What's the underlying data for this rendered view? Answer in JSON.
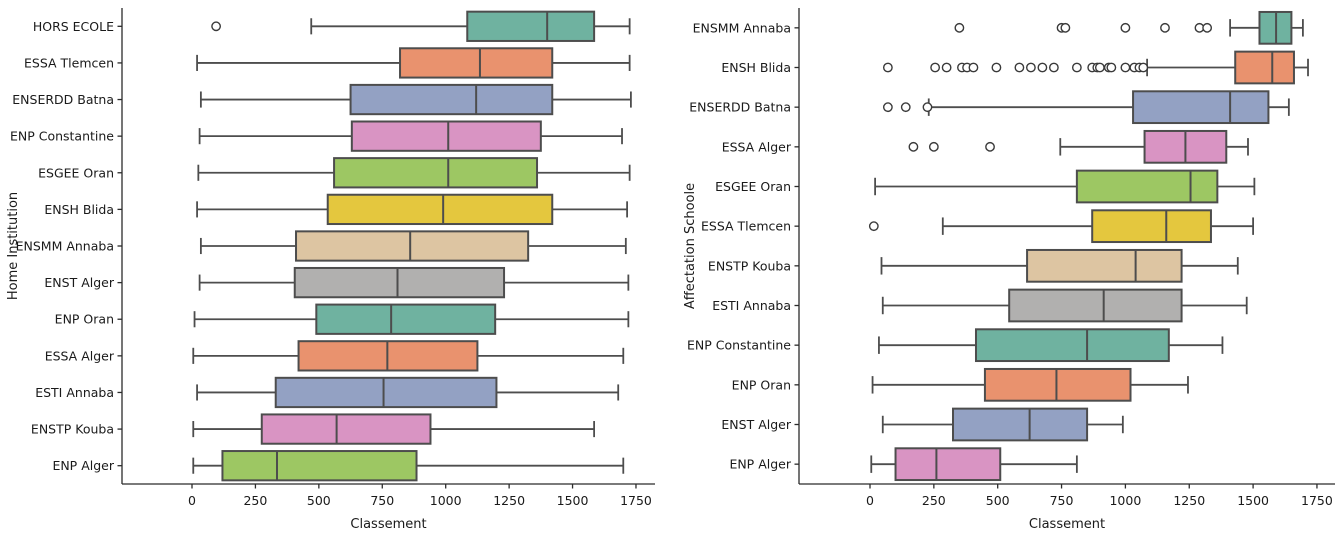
{
  "figure": {
    "background": "#ffffff",
    "palette": {
      "teal": "#6FB2A0",
      "orange": "#E9926E",
      "blue": "#93A1C3",
      "pink": "#D994C3",
      "green": "#9DC763",
      "yellow": "#E4C73E",
      "tan": "#DDC5A2",
      "gray": "#B1B0AF"
    },
    "edge_color": "#4D4D4D",
    "spine_color": "#2B2B2B",
    "text_color": "#1A1A1A"
  },
  "chart_data": [
    {
      "type": "boxplot-horizontal",
      "title": "",
      "xlabel": "Classement",
      "ylabel": "Home Institution",
      "x_ticks": [
        0,
        250,
        500,
        750,
        1000,
        1250,
        1500,
        1750
      ],
      "xlim": [
        -280,
        1820
      ],
      "grid": false,
      "legend": null,
      "rows": [
        {
          "label": "HORS ECOLE",
          "color": "teal",
          "whislo": 470,
          "q1": 1085,
          "med": 1400,
          "q3": 1585,
          "whishi": 1725,
          "outliers": [
            95
          ]
        },
        {
          "label": "ESSA Tlemcen",
          "color": "orange",
          "whislo": 20,
          "q1": 820,
          "med": 1135,
          "q3": 1420,
          "whishi": 1725,
          "outliers": []
        },
        {
          "label": "ENSERDD Batna",
          "color": "blue",
          "whislo": 35,
          "q1": 625,
          "med": 1120,
          "q3": 1420,
          "whishi": 1730,
          "outliers": []
        },
        {
          "label": "ENP Constantine",
          "color": "pink",
          "whislo": 30,
          "q1": 630,
          "med": 1010,
          "q3": 1375,
          "whishi": 1695,
          "outliers": []
        },
        {
          "label": "ESGEE Oran",
          "color": "green",
          "whislo": 25,
          "q1": 560,
          "med": 1010,
          "q3": 1360,
          "whishi": 1725,
          "outliers": []
        },
        {
          "label": "ENSH Blida",
          "color": "yellow",
          "whislo": 20,
          "q1": 535,
          "med": 990,
          "q3": 1420,
          "whishi": 1715,
          "outliers": []
        },
        {
          "label": "ENSMM Annaba",
          "color": "tan",
          "whislo": 35,
          "q1": 410,
          "med": 860,
          "q3": 1325,
          "whishi": 1710,
          "outliers": []
        },
        {
          "label": "ENST Alger",
          "color": "gray",
          "whislo": 30,
          "q1": 405,
          "med": 810,
          "q3": 1230,
          "whishi": 1720,
          "outliers": []
        },
        {
          "label": "ENP Oran",
          "color": "teal",
          "whislo": 10,
          "q1": 490,
          "med": 785,
          "q3": 1195,
          "whishi": 1720,
          "outliers": []
        },
        {
          "label": "ESSA Alger",
          "color": "orange",
          "whislo": 5,
          "q1": 420,
          "med": 770,
          "q3": 1125,
          "whishi": 1700,
          "outliers": []
        },
        {
          "label": "ESTI Annaba",
          "color": "blue",
          "whislo": 20,
          "q1": 330,
          "med": 755,
          "q3": 1200,
          "whishi": 1680,
          "outliers": []
        },
        {
          "label": "ENSTP Kouba",
          "color": "pink",
          "whislo": 5,
          "q1": 275,
          "med": 570,
          "q3": 940,
          "whishi": 1585,
          "outliers": []
        },
        {
          "label": "ENP Alger",
          "color": "green",
          "whislo": 5,
          "q1": 120,
          "med": 335,
          "q3": 885,
          "whishi": 1700,
          "outliers": []
        }
      ]
    },
    {
      "type": "boxplot-horizontal",
      "title": "",
      "xlabel": "Classement",
      "ylabel": "Affectation Schoole",
      "x_ticks": [
        0,
        250,
        500,
        750,
        1000,
        1250,
        1500,
        1750
      ],
      "xlim": [
        -280,
        1820
      ],
      "grid": false,
      "legend": null,
      "rows": [
        {
          "label": "ENSMM Annaba",
          "color": "teal",
          "whislo": 1410,
          "q1": 1525,
          "med": 1590,
          "q3": 1650,
          "whishi": 1695,
          "outliers": [
            350,
            750,
            765,
            1000,
            1155,
            1290,
            1320
          ]
        },
        {
          "label": "ENSH Blida",
          "color": "orange",
          "whislo": 1085,
          "q1": 1430,
          "med": 1575,
          "q3": 1660,
          "whishi": 1715,
          "outliers": [
            70,
            255,
            300,
            360,
            380,
            405,
            495,
            585,
            630,
            675,
            720,
            810,
            870,
            890,
            900,
            935,
            945,
            1000,
            1035,
            1055,
            1070
          ]
        },
        {
          "label": "ENSERDD Batna",
          "color": "blue",
          "whislo": 230,
          "q1": 1030,
          "med": 1410,
          "q3": 1560,
          "whishi": 1640,
          "outliers": [
            70,
            140,
            225
          ]
        },
        {
          "label": "ESSA Alger",
          "color": "pink",
          "whislo": 745,
          "q1": 1075,
          "med": 1235,
          "q3": 1395,
          "whishi": 1480,
          "outliers": [
            170,
            250,
            470
          ]
        },
        {
          "label": "ESGEE Oran",
          "color": "green",
          "whislo": 20,
          "q1": 810,
          "med": 1255,
          "q3": 1360,
          "whishi": 1505,
          "outliers": []
        },
        {
          "label": "ESSA Tlemcen",
          "color": "yellow",
          "whislo": 285,
          "q1": 870,
          "med": 1160,
          "q3": 1335,
          "whishi": 1500,
          "outliers": [
            15
          ]
        },
        {
          "label": "ENSTP Kouba",
          "color": "tan",
          "whislo": 45,
          "q1": 615,
          "med": 1040,
          "q3": 1220,
          "whishi": 1440,
          "outliers": []
        },
        {
          "label": "ESTI Annaba",
          "color": "gray",
          "whislo": 50,
          "q1": 545,
          "med": 915,
          "q3": 1220,
          "whishi": 1475,
          "outliers": []
        },
        {
          "label": "ENP Constantine",
          "color": "teal",
          "whislo": 35,
          "q1": 415,
          "med": 850,
          "q3": 1170,
          "whishi": 1380,
          "outliers": []
        },
        {
          "label": "ENP Oran",
          "color": "orange",
          "whislo": 10,
          "q1": 450,
          "med": 730,
          "q3": 1020,
          "whishi": 1245,
          "outliers": []
        },
        {
          "label": "ENST Alger",
          "color": "blue",
          "whislo": 50,
          "q1": 325,
          "med": 625,
          "q3": 850,
          "whishi": 990,
          "outliers": []
        },
        {
          "label": "ENP Alger",
          "color": "pink",
          "whislo": 5,
          "q1": 100,
          "med": 260,
          "q3": 510,
          "whishi": 810,
          "outliers": []
        }
      ]
    }
  ]
}
